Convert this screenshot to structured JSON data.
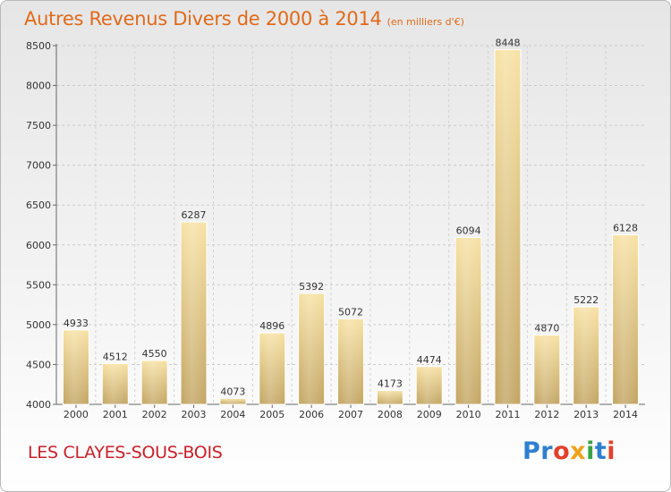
{
  "chart_data": {
    "type": "bar",
    "title": "Autres Revenus Divers de 2000 à 2014",
    "subtitle": "(en milliers d'€)",
    "categories": [
      "2000",
      "2001",
      "2002",
      "2003",
      "2004",
      "2005",
      "2006",
      "2007",
      "2008",
      "2009",
      "2010",
      "2011",
      "2012",
      "2013",
      "2014"
    ],
    "values": [
      4933,
      4512,
      4550,
      6287,
      4073,
      4896,
      5392,
      5072,
      4173,
      4474,
      6094,
      8448,
      4870,
      5222,
      6128
    ],
    "ylim": [
      4000,
      8500
    ],
    "yticks": [
      4000,
      4500,
      5000,
      5500,
      6000,
      6500,
      7000,
      7500,
      8000,
      8500
    ],
    "grid": true,
    "xlabel": "",
    "ylabel": ""
  },
  "footer": {
    "commune": "LES CLAYES-SOUS-BOIS",
    "logo": [
      "Pr",
      "o",
      "x",
      "i",
      "t",
      "i"
    ]
  },
  "colors": {
    "title": "#e06a1a",
    "commune": "#c8202a",
    "bar_light": "#f6dd9a",
    "bar_dark": "#c6a96a"
  }
}
